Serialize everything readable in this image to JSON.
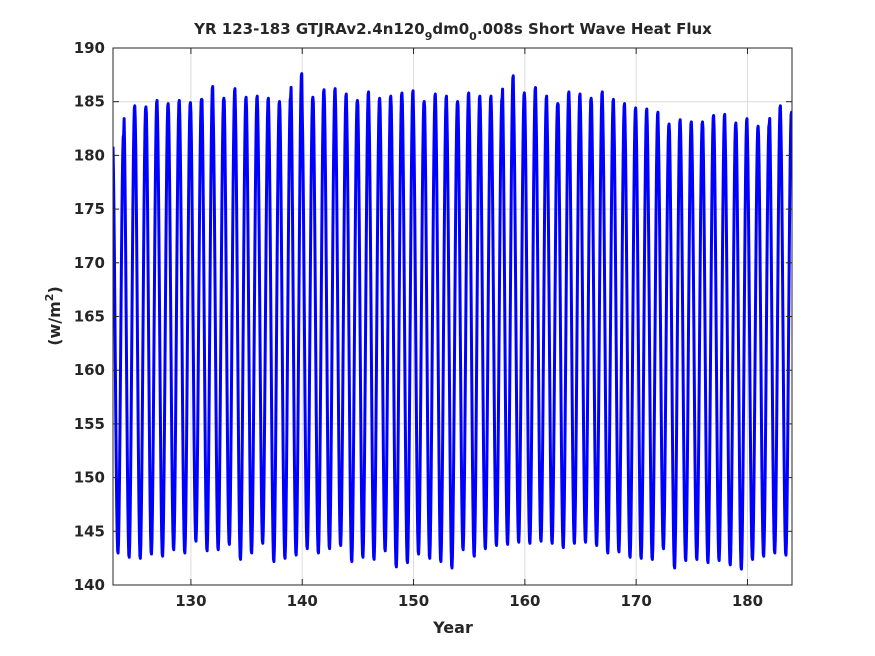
{
  "chart_data": {
    "type": "line",
    "title_prefix": "YR 123-183 GTJRAv2.4n120",
    "title_sub1": "9",
    "title_mid": "dm0",
    "title_sub2": "0",
    "title_suffix": ".008s Short Wave Heat Flux",
    "xlabel": "Year",
    "ylabel_prefix": "(w/m",
    "ylabel_sup": "2",
    "ylabel_suffix": ")",
    "xlim": [
      123,
      184
    ],
    "ylim": [
      140,
      190
    ],
    "xticks": [
      130,
      140,
      150,
      160,
      170,
      180
    ],
    "yticks": [
      140,
      145,
      150,
      155,
      160,
      165,
      170,
      175,
      180,
      185,
      190
    ],
    "grid": true,
    "line_color": "#0000ff",
    "series": [
      {
        "period_years": 1,
        "start_year": 123,
        "end_year": 184,
        "annual_max": [
          182.0,
          184.7,
          184.6,
          185.2,
          184.9,
          185.2,
          185.0,
          185.3,
          186.5,
          185.4,
          186.3,
          185.5,
          185.6,
          185.4,
          185.1,
          185.5,
          187.7,
          185.5,
          186.2,
          186.3,
          185.8,
          185.2,
          186.0,
          185.4,
          185.6,
          185.9,
          186.1,
          185.1,
          185.8,
          185.6,
          185.1,
          185.9,
          185.6,
          185.6,
          185.4,
          187.5,
          185.9,
          186.4,
          185.6,
          184.9,
          186.0,
          185.8,
          185.4,
          186.0,
          185.3,
          184.9,
          184.5,
          184.4,
          184.1,
          183.0,
          183.4,
          183.2,
          183.2,
          183.8,
          183.9,
          183.1,
          183.5,
          182.8,
          183.0,
          184.7,
          184.1
        ],
        "annual_min": [
          142.9,
          142.5,
          142.4,
          142.8,
          142.6,
          143.2,
          142.9,
          144.0,
          143.1,
          143.2,
          143.7,
          142.3,
          142.9,
          143.8,
          142.1,
          142.4,
          142.7,
          143.3,
          142.9,
          143.3,
          143.6,
          142.1,
          142.5,
          142.3,
          143.1,
          141.6,
          142.0,
          142.8,
          142.4,
          142.1,
          141.5,
          143.2,
          142.6,
          143.3,
          143.6,
          143.7,
          143.9,
          143.8,
          144.0,
          143.8,
          143.4,
          143.8,
          143.9,
          143.6,
          142.9,
          143.0,
          142.5,
          142.4,
          142.3,
          143.3,
          141.5,
          142.2,
          142.3,
          142.0,
          142.2,
          141.8,
          141.4,
          142.3,
          142.6,
          142.9,
          142.7
        ]
      }
    ]
  }
}
